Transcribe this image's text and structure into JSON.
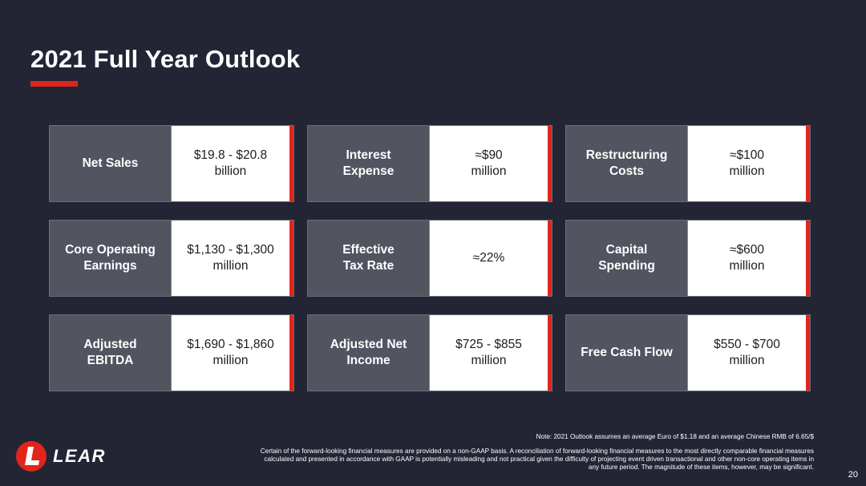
{
  "slide": {
    "title": "2021 Full Year Outlook",
    "page_number": "20",
    "accent_color": "#e1251b",
    "background_color": "#232535"
  },
  "cards": [
    {
      "label": "Net Sales",
      "value": "$19.8 - $20.8\nbillion"
    },
    {
      "label": "Interest\nExpense",
      "value": "≈$90\nmillion"
    },
    {
      "label": "Restructuring\nCosts",
      "value": "≈$100\nmillion"
    },
    {
      "label": "Core Operating\nEarnings",
      "value": "$1,130 - $1,300\nmillion"
    },
    {
      "label": "Effective\nTax Rate",
      "value": "≈22%"
    },
    {
      "label": "Capital\nSpending",
      "value": "≈$600\nmillion"
    },
    {
      "label": "Adjusted\nEBITDA",
      "value": "$1,690 - $1,860\nmillion"
    },
    {
      "label": "Adjusted Net\nIncome",
      "value": "$725 - $855\nmillion"
    },
    {
      "label": "Free Cash Flow",
      "value": "$550 - $700\nmillion"
    }
  ],
  "footer": {
    "note": "Note: 2021 Outlook assumes an average Euro of $1.18 and an average Chinese RMB of 6.65/$",
    "disclaimer": "Certain of the forward-looking financial measures are provided on a non-GAAP basis. A reconciliation of forward-looking financial measures to the most directly comparable financial measures calculated and presented in accordance with GAAP is potentially misleading and not practical given the difficulty of projecting event driven transactional and other non-core operating items in any future period. The magnitude of these items, however, may be significant.",
    "logo_text": "LEAR",
    "logo_icon": "lear-logo-icon"
  }
}
